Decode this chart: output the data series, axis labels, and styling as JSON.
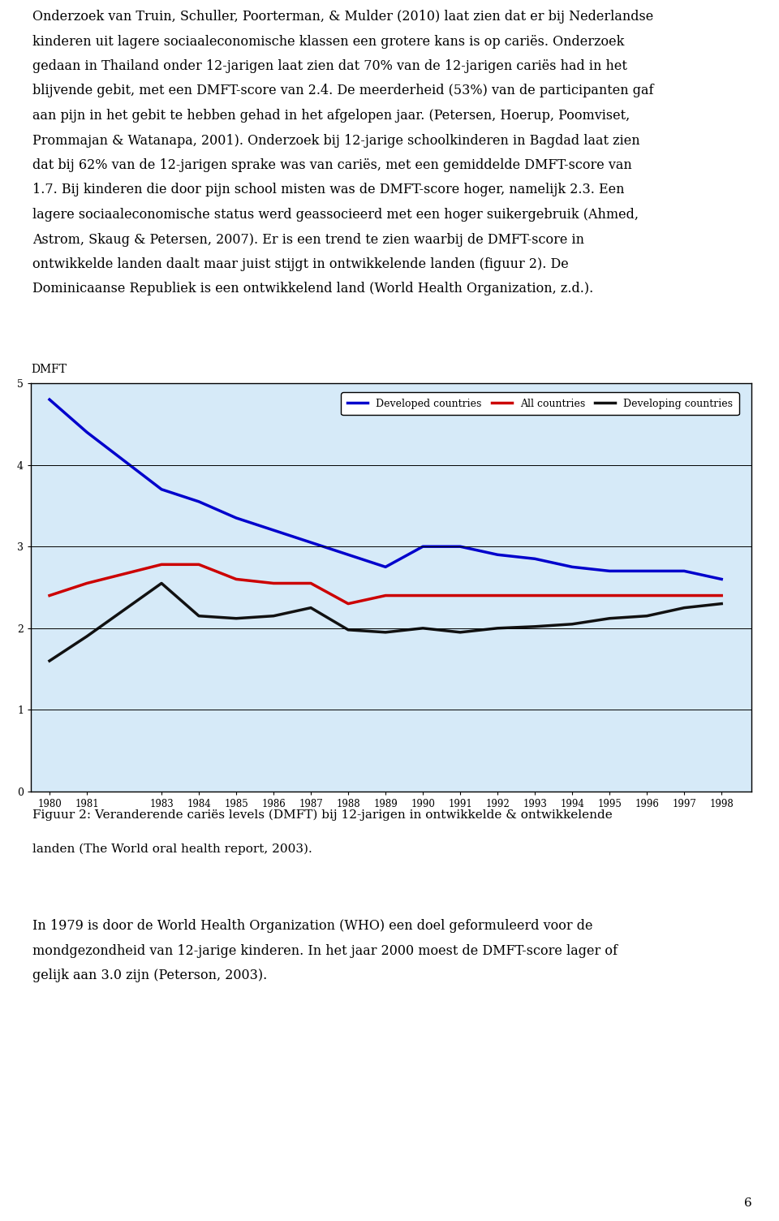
{
  "page_bg": "#ffffff",
  "chart_bg": "#d6eaf8",
  "text_color": "#000000",
  "page_number": "6",
  "ylabel": "DMFT",
  "ylim": [
    0,
    5
  ],
  "yticks": [
    0,
    1,
    2,
    3,
    4,
    5
  ],
  "years": [
    1980,
    1981,
    1983,
    1984,
    1985,
    1986,
    1987,
    1988,
    1989,
    1990,
    1991,
    1992,
    1993,
    1994,
    1995,
    1996,
    1997,
    1998
  ],
  "developed_countries": [
    4.8,
    4.4,
    3.7,
    3.55,
    3.35,
    3.2,
    3.05,
    2.9,
    2.75,
    3.0,
    3.0,
    2.9,
    2.85,
    2.75,
    2.7,
    2.7,
    2.7,
    2.6
  ],
  "all_countries": [
    2.4,
    2.55,
    2.78,
    2.78,
    2.6,
    2.55,
    2.55,
    2.3,
    2.4,
    2.4,
    2.4,
    2.4,
    2.4,
    2.4,
    2.4,
    2.4,
    2.4,
    2.4
  ],
  "developing_countries": [
    1.6,
    1.9,
    2.55,
    2.15,
    2.12,
    2.15,
    2.25,
    1.98,
    1.95,
    2.0,
    1.95,
    2.0,
    2.02,
    2.05,
    2.12,
    2.15,
    2.25,
    2.3
  ],
  "line_colors": [
    "#0000cc",
    "#cc0000",
    "#111111"
  ],
  "line_labels": [
    "Developed countries",
    "All countries",
    "Developing countries"
  ],
  "para1_lines": [
    "Onderzoek van Truin, Schuller, Poorterman, & Mulder (2010) laat zien dat er bij Nederlandse",
    "kinderen uit lagere sociaaleconomische klassen een grotere kans is op cariës. Onderzoek",
    "gedaan in Thailand onder 12-jarigen laat zien dat 70% van de 12-jarigen cariës had in het",
    "blijvende gebit, met een DMFT-score van 2.4. De meerderheid (53%) van de participanten gaf",
    "aan pijn in het gebit te hebben gehad in het afgelopen jaar. (Petersen, Hoerup, Poomviset,",
    "Prommajan & Watanapa, 2001). Onderzoek bij 12-jarige schoolkinderen in Bagdad laat zien",
    "dat bij 62% van de 12-jarigen sprake was van cariës, met een gemiddelde DMFT-score van",
    "1.7. Bij kinderen die door pijn school misten was de DMFT-score hoger, namelijk 2.3. Een",
    "lagere sociaaleconomische status werd geassocieerd met een hoger suikergebruik (Ahmed,",
    "Astrom, Skaug & Petersen, 2007). Er is een trend te zien waarbij de DMFT-score in",
    "ontwikkelde landen daalt maar juist stijgt in ontwikkelende landen (figuur 2). De",
    "Dominicaanse Republiek is een ontwikkelend land (World Health Organization, z.d.)."
  ],
  "caption_line1": "Figuur 2: Veranderende cariës levels (DMFT) bij 12-jarigen in ontwikkelde & ontwikkelende",
  "caption_line2": "landen (The World oral health report, 2003).",
  "para2_lines": [
    "In 1979 is door de World Health Organization (WHO) een doel geformuleerd voor de",
    "mondgezondheid van 12-jarige kinderen. In het jaar 2000 moest de DMFT-score lager of",
    "gelijk aan 3.0 zijn (Peterson, 2003)."
  ]
}
